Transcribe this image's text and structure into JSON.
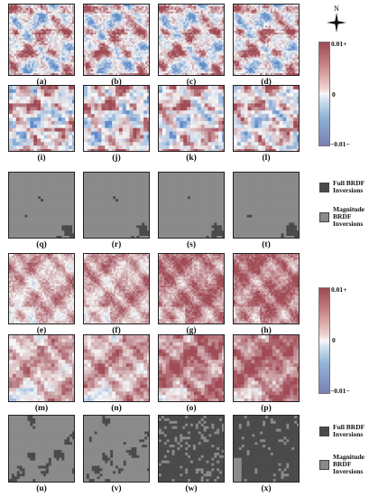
{
  "compass": {
    "north_label": "N"
  },
  "rows": [
    {
      "kind": "diff",
      "labels": [
        "(a)",
        "(b)",
        "(c)",
        "(d)"
      ]
    },
    {
      "kind": "diff",
      "labels": [
        "(i)",
        "(j)",
        "(k)",
        "(l)"
      ]
    },
    {
      "kind": "mask",
      "labels": [
        "(q)",
        "(r)",
        "(s)",
        "(t)"
      ]
    },
    {
      "kind": "diff",
      "labels": [
        "(e)",
        "(f)",
        "(g)",
        "(h)"
      ]
    },
    {
      "kind": "diff",
      "labels": [
        "(m)",
        "(n)",
        "(o)",
        "(p)"
      ]
    },
    {
      "kind": "mask",
      "labels": [
        "(u)",
        "(v)",
        "(w)",
        "(x)"
      ]
    }
  ],
  "colorbars": [
    {
      "ticks": [
        "0.01+",
        "0",
        "−0.01−"
      ]
    },
    {
      "ticks": [
        "0.01+",
        "0",
        "−0.01−"
      ]
    }
  ],
  "legends": [
    {
      "items": [
        {
          "color": "#4a4a4a",
          "line1": "Full BRDF",
          "line2": "Inversions"
        },
        {
          "color": "#8a8a8a",
          "line1": "Magnitude",
          "line2": "BRDF",
          "line3": "Inversions"
        }
      ]
    },
    {
      "items": [
        {
          "color": "#4a4a4a",
          "line1": "Full BRDF",
          "line2": "Inversions"
        },
        {
          "color": "#8a8a8a",
          "line1": "Magnitude",
          "line2": "BRDF",
          "line3": "Inversions"
        }
      ]
    }
  ]
}
